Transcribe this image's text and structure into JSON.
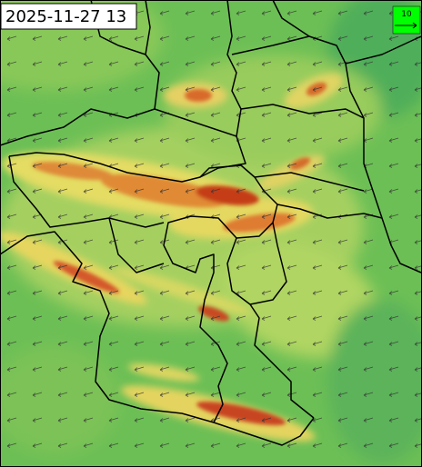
{
  "timestamp": "2025-11-27 13",
  "legend": {
    "label": "10"
  }
}
